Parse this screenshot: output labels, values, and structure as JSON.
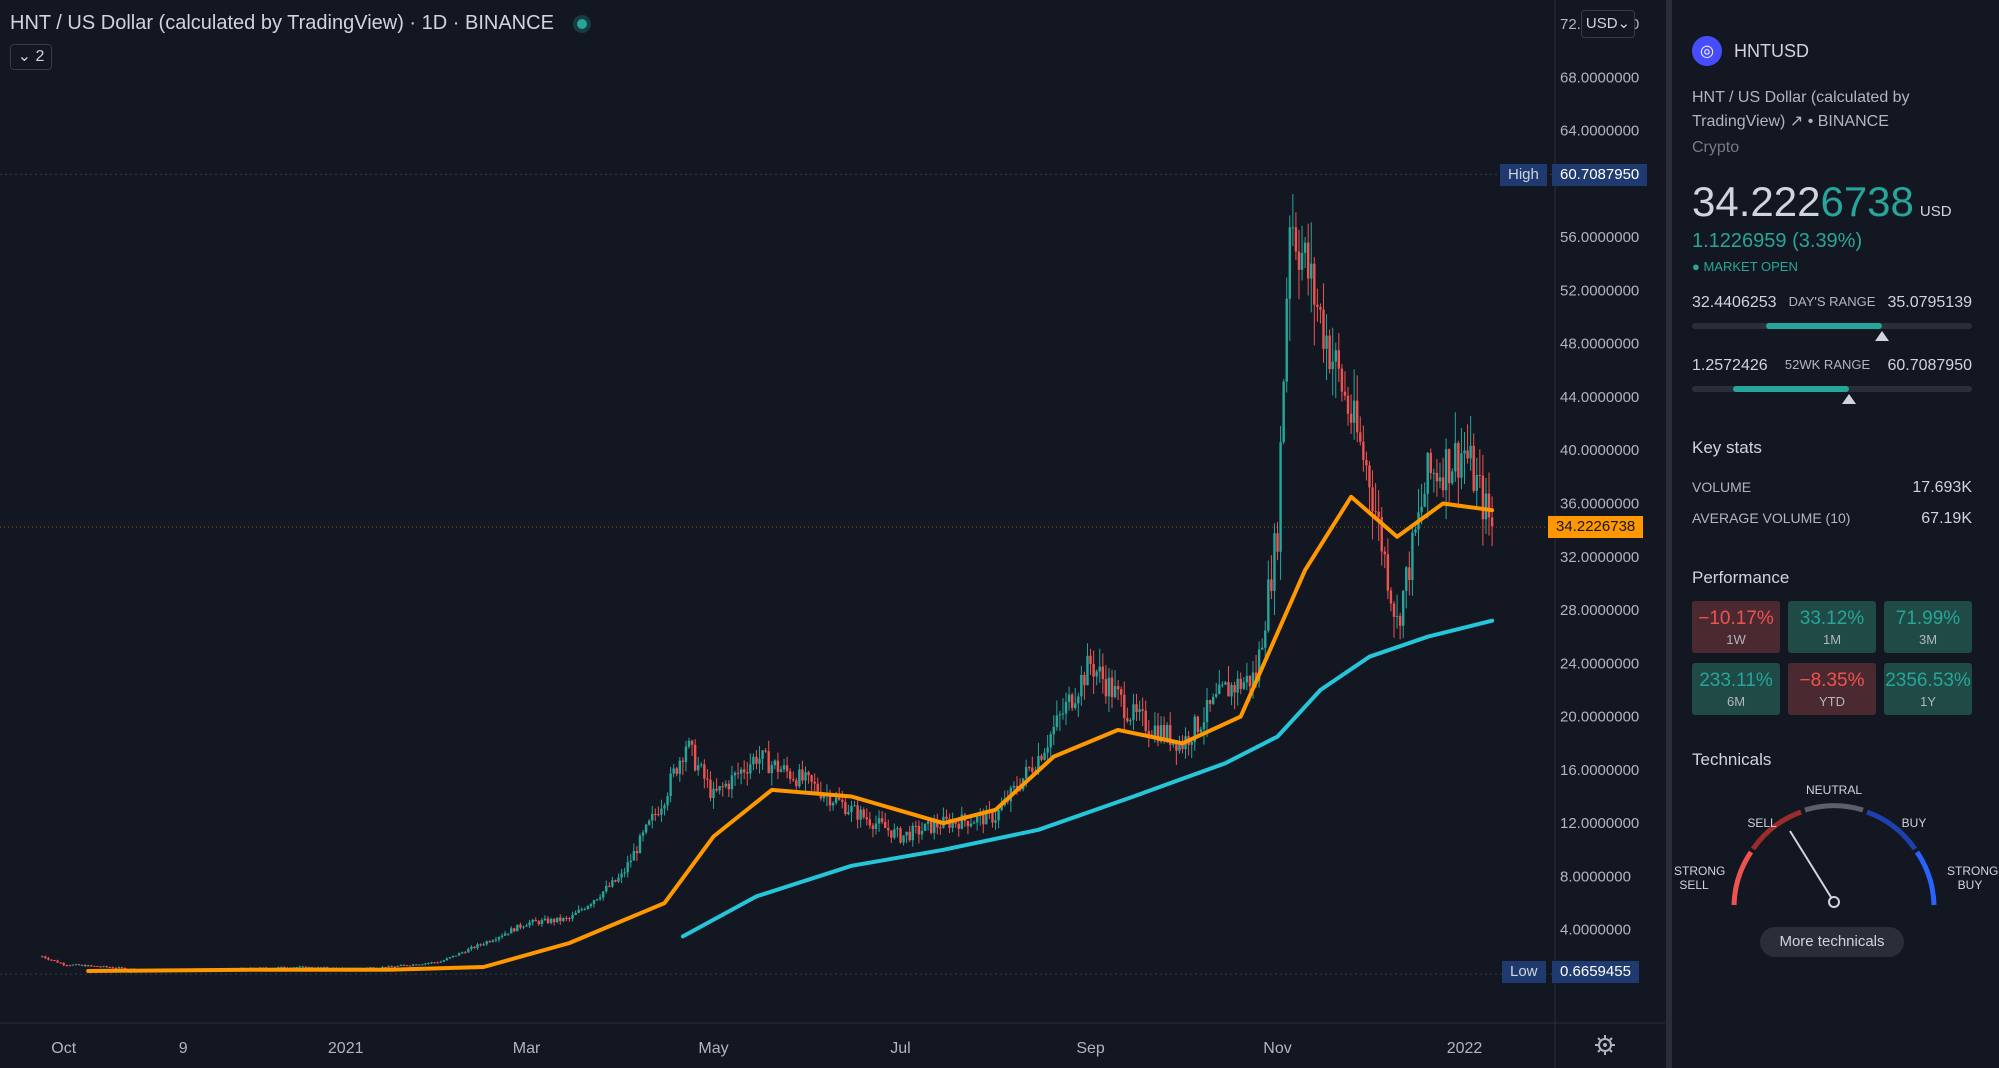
{
  "header": {
    "symbol_description": "HNT / US Dollar (calculated by TradingView)",
    "interval": "1D",
    "exchange": "BINANCE",
    "indicator_count": "2",
    "currency_button": "USD"
  },
  "price_scale": {
    "ticks": [
      "72.0000000",
      "68.0000000",
      "64.0000000",
      "56.0000000",
      "52.0000000",
      "48.0000000",
      "44.0000000",
      "40.0000000",
      "36.0000000",
      "32.0000000",
      "28.0000000",
      "24.0000000",
      "20.0000000",
      "16.0000000",
      "12.0000000",
      "8.0000000",
      "4.0000000"
    ],
    "current_price_tag": "34.2226738",
    "high_label": "High",
    "high_value": "60.7087950",
    "low_label": "Low",
    "low_value": "0.6659455"
  },
  "time_scale": [
    "Oct",
    "9",
    "2021",
    "Mar",
    "May",
    "Jul",
    "Sep",
    "Nov",
    "2022"
  ],
  "chart_data": {
    "type": "line",
    "series": [
      {
        "name": "",
        "kind": "candlestick-close",
        "color": "#26a69a",
        "x": [
          "2020-09-24",
          "2020-10-01",
          "2020-10-15",
          "2020-11-01",
          "2020-11-15",
          "2020-12-01",
          "2020-12-15",
          "2021-01-01",
          "2021-01-15",
          "2021-02-01",
          "2021-02-15",
          "2021-03-01",
          "2021-03-15",
          "2021-04-01",
          "2021-04-15",
          "2021-04-22",
          "2021-05-01",
          "2021-05-15",
          "2021-06-01",
          "2021-06-15",
          "2021-07-01",
          "2021-07-15",
          "2021-08-01",
          "2021-08-15",
          "2021-09-01",
          "2021-09-15",
          "2021-10-01",
          "2021-10-15",
          "2021-10-25",
          "2021-11-01",
          "2021-11-05",
          "2021-11-15",
          "2021-12-01",
          "2021-12-10",
          "2021-12-20",
          "2022-01-01",
          "2022-01-10"
        ],
        "values": [
          2.0,
          1.4,
          1.2,
          0.9,
          1.0,
          1.1,
          1.2,
          1.1,
          1.2,
          1.6,
          3.0,
          4.5,
          4.8,
          8.0,
          14.0,
          18.0,
          14.0,
          17.0,
          15.0,
          13.0,
          11.0,
          12.0,
          12.5,
          17.0,
          24.0,
          20.0,
          18.0,
          22.0,
          23.0,
          34.0,
          58.0,
          50.0,
          38.0,
          27.0,
          38.0,
          40.0,
          34.2
        ]
      },
      {
        "name": "",
        "kind": "moving-average",
        "color": "#ff9800",
        "x": [
          "2020-10-09",
          "2020-12-01",
          "2021-01-15",
          "2021-02-15",
          "2021-03-15",
          "2021-04-15",
          "2021-05-01",
          "2021-05-20",
          "2021-06-15",
          "2021-07-15",
          "2021-08-01",
          "2021-08-20",
          "2021-09-10",
          "2021-10-01",
          "2021-10-20",
          "2021-11-10",
          "2021-11-25",
          "2021-12-10",
          "2021-12-25",
          "2022-01-10"
        ],
        "values": [
          0.9,
          1.0,
          1.0,
          1.2,
          3.0,
          6.0,
          11.0,
          14.5,
          14.0,
          12.0,
          13.0,
          17.0,
          19.0,
          18.0,
          20.0,
          31.0,
          36.5,
          33.5,
          36.0,
          35.5
        ]
      },
      {
        "name": "",
        "kind": "moving-average",
        "color": "#26c6da",
        "x": [
          "2021-04-21",
          "2021-05-15",
          "2021-06-15",
          "2021-07-15",
          "2021-08-15",
          "2021-09-15",
          "2021-10-15",
          "2021-11-01",
          "2021-11-15",
          "2021-12-01",
          "2021-12-20",
          "2022-01-10"
        ],
        "values": [
          3.5,
          6.5,
          8.8,
          10.0,
          11.5,
          14.0,
          16.5,
          18.5,
          22.0,
          24.5,
          26.0,
          27.2
        ]
      }
    ],
    "ylim": [
      0,
      72
    ],
    "grid": false,
    "legend": "none"
  },
  "panel": {
    "ticker": "HNTUSD",
    "description": "HNT / US Dollar (calculated by TradingView)",
    "exchange_suffix": "• BINANCE",
    "asset_class": "Crypto",
    "price_main": "34.222",
    "price_highlight": "6738",
    "price_currency": "USD",
    "change": "1.1226959 (3.39%)",
    "market_status": "● MARKET OPEN",
    "days_range": {
      "low": "32.4406253",
      "label": "DAY'S RANGE",
      "high": "35.0795139",
      "position": 0.68
    },
    "wk52_range": {
      "low": "1.2572426",
      "label": "52WK RANGE",
      "high": "60.7087950",
      "position": 0.56
    },
    "key_stats_title": "Key stats",
    "volume_label": "VOLUME",
    "volume_value": "17.693K",
    "avg_volume_label": "AVERAGE VOLUME (10)",
    "avg_volume_value": "67.19K",
    "performance_title": "Performance",
    "performance": [
      {
        "value": "−10.17%",
        "label": "1W",
        "sign": "neg"
      },
      {
        "value": "33.12%",
        "label": "1M",
        "sign": "pos"
      },
      {
        "value": "71.99%",
        "label": "3M",
        "sign": "pos"
      },
      {
        "value": "233.11%",
        "label": "6M",
        "sign": "pos"
      },
      {
        "value": "−8.35%",
        "label": "YTD",
        "sign": "neg"
      },
      {
        "value": "2356.53%",
        "label": "1Y",
        "sign": "pos"
      }
    ],
    "technicals_title": "Technicals",
    "gauge": {
      "strong_sell": "STRONG SELL",
      "sell": "SELL",
      "neutral": "NEUTRAL",
      "buy": "BUY",
      "strong_buy": "STRONG BUY"
    },
    "more_technicals": "More technicals"
  },
  "colors": {
    "bull": "#26a69a",
    "bear": "#ef5350",
    "ma_fast": "#ff9800",
    "ma_slow": "#26c6da",
    "tag_blue": "#1e3a6e"
  }
}
